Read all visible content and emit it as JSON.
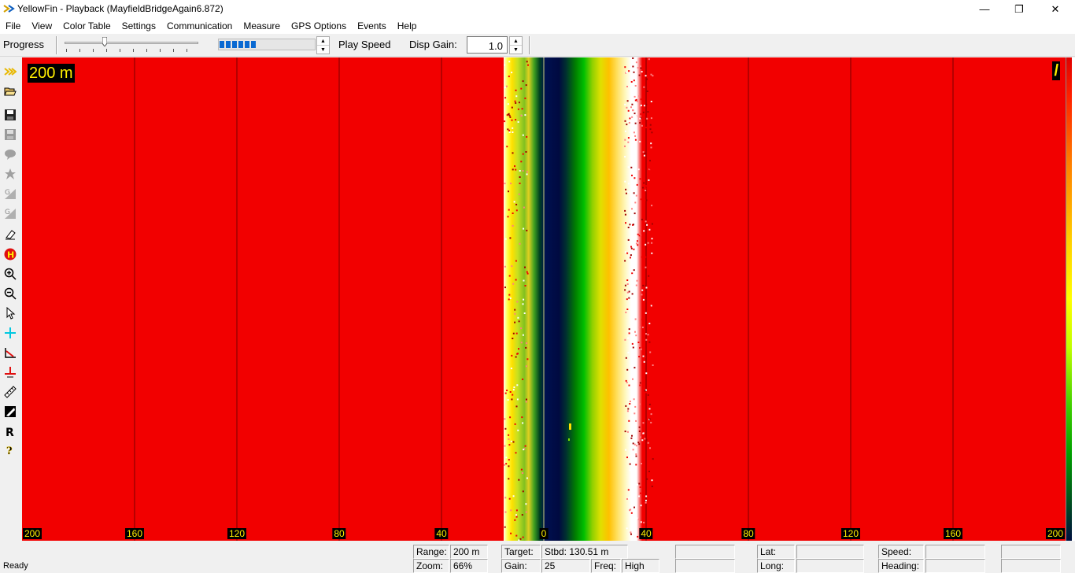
{
  "window": {
    "title": "YellowFin - Playback (MayfieldBridgeAgain6.872)",
    "minimize": "—",
    "maximize": "❐",
    "close": "✕"
  },
  "menu": [
    "File",
    "View",
    "Color Table",
    "Settings",
    "Communication",
    "Measure",
    "GPS Options",
    "Events",
    "Help"
  ],
  "toolbar": {
    "progress_label": "Progress",
    "progress_value": 0.3,
    "play_speed_fill": 0.4,
    "play_speed_label": "Play Speed",
    "disp_gain_label": "Disp Gain:",
    "disp_gain_value": "1.0"
  },
  "tools": [
    "arrows-icon",
    "open-folder-icon",
    "save-icon",
    "save-disabled-icon",
    "balloon-icon",
    "star-icon",
    "gain-g1-icon",
    "gain-g2-icon",
    "eraser-icon",
    "h-circle-icon",
    "zoom-in-icon",
    "zoom-out-icon",
    "pointer-icon",
    "crosshair-icon",
    "measure-angle-icon",
    "measure-line-icon",
    "ruler-icon",
    "palette-icon",
    "r-icon",
    "help-icon"
  ],
  "sonar": {
    "range_text": "200 m",
    "marker_text": "/",
    "axis_ticks": [
      200,
      160,
      120,
      80,
      40,
      0,
      40,
      80,
      120,
      160,
      200
    ],
    "colors": {
      "background": "#f20000",
      "accent": "#ffee00"
    }
  },
  "status": {
    "ready": "Ready",
    "range_label": "Range:",
    "range_value": "200 m",
    "zoom_label": "Zoom:",
    "zoom_value": "66%",
    "target_label": "Target:",
    "target_value": "Stbd: 130.51 m",
    "gain_label": "Gain:",
    "gain_value": "25",
    "freq_label": "Freq:",
    "freq_value": "High",
    "lat_label": "Lat:",
    "long_label": "Long:",
    "speed_label": "Speed:",
    "heading_label": "Heading:"
  }
}
